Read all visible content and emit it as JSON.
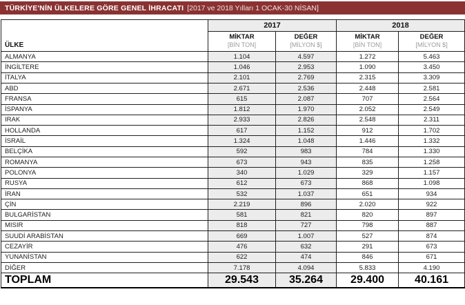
{
  "title": {
    "main": "TÜRKİYE'NİN ÜLKELERE GÖRE GENEL İHRACATI",
    "sub": "[2017 ve 2018 Yılları 1 OCAK-30 NİSAN]"
  },
  "colors": {
    "accent": "#8a3232",
    "shaded_column": "#ececec",
    "border": "#1e1e1e"
  },
  "table": {
    "country_header": "ÜLKE",
    "year_groups": [
      "2017",
      "2018"
    ],
    "sub_headers": [
      {
        "label": "MİKTAR",
        "unit": "[BİN TON]"
      },
      {
        "label": "DEĞER",
        "unit": "[MİLYON $]"
      },
      {
        "label": "MİKTAR",
        "unit": "[BİN TON]"
      },
      {
        "label": "DEĞER",
        "unit": "[MİLYON $]"
      }
    ],
    "rows": [
      {
        "country": "ALMANYA",
        "values": [
          "1.104",
          "4.597",
          "1.272",
          "5.463"
        ]
      },
      {
        "country": "İNGİLTERE",
        "values": [
          "1.046",
          "2.953",
          "1.090",
          "3.450"
        ]
      },
      {
        "country": "İTALYA",
        "values": [
          "2.101",
          "2.769",
          "2.315",
          "3.309"
        ]
      },
      {
        "country": "ABD",
        "values": [
          "2.671",
          "2.536",
          "2.448",
          "2.581"
        ]
      },
      {
        "country": "FRANSA",
        "values": [
          "615",
          "2.087",
          "707",
          "2.564"
        ]
      },
      {
        "country": "İSPANYA",
        "values": [
          "1.812",
          "1.970",
          "2.052",
          "2.549"
        ]
      },
      {
        "country": "IRAK",
        "values": [
          "2.933",
          "2.826",
          "2.548",
          "2.311"
        ]
      },
      {
        "country": "HOLLANDA",
        "values": [
          "617",
          "1.152",
          "912",
          "1.702"
        ]
      },
      {
        "country": "İSRAİL",
        "values": [
          "1.324",
          "1.048",
          "1.446",
          "1.332"
        ]
      },
      {
        "country": "BELÇİKA",
        "values": [
          "592",
          "983",
          "784",
          "1.330"
        ]
      },
      {
        "country": "ROMANYA",
        "values": [
          "673",
          "943",
          "835",
          "1.258"
        ]
      },
      {
        "country": "POLONYA",
        "values": [
          "340",
          "1.029",
          "329",
          "1.157"
        ]
      },
      {
        "country": "RUSYA",
        "values": [
          "612",
          "673",
          "868",
          "1.098"
        ]
      },
      {
        "country": "İRAN",
        "values": [
          "532",
          "1.037",
          "651",
          "934"
        ]
      },
      {
        "country": "ÇİN",
        "values": [
          "2.219",
          "896",
          "2.020",
          "922"
        ]
      },
      {
        "country": "BULGARİSTAN",
        "values": [
          "581",
          "821",
          "820",
          "897"
        ]
      },
      {
        "country": "MISIR",
        "values": [
          "818",
          "727",
          "798",
          "887"
        ]
      },
      {
        "country": "SUUDİ ARABİSTAN",
        "values": [
          "669",
          "1.007",
          "527",
          "874"
        ]
      },
      {
        "country": "CEZAYİR",
        "values": [
          "476",
          "632",
          "291",
          "673"
        ]
      },
      {
        "country": "YUNANİSTAN",
        "values": [
          "622",
          "474",
          "846",
          "671"
        ]
      },
      {
        "country": "DİĞER",
        "values": [
          "7.178",
          "4.094",
          "5.833",
          "4.190"
        ]
      }
    ],
    "total": {
      "country": "TOPLAM",
      "values": [
        "29.543",
        "35.264",
        "29.400",
        "40.161"
      ]
    }
  }
}
